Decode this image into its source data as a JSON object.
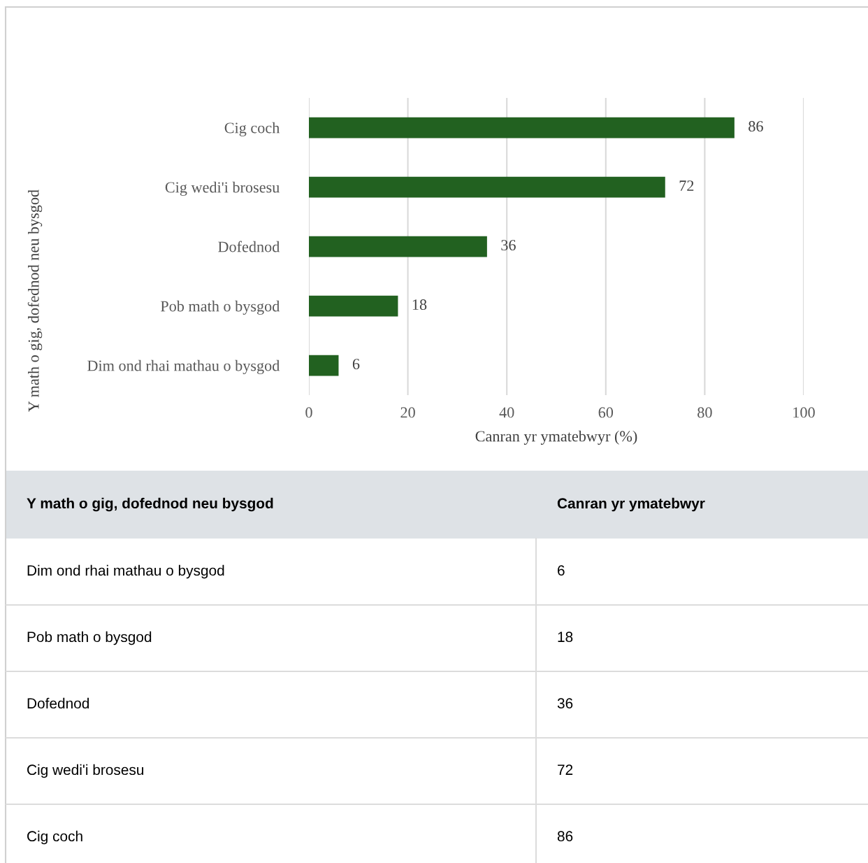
{
  "chart_data": {
    "type": "bar",
    "orientation": "horizontal",
    "categories": [
      "Cig coch",
      "Cig wedi'i brosesu",
      "Dofednod",
      "Pob math o bysgod",
      "Dim ond rhai mathau o bysgod"
    ],
    "values": [
      86,
      72,
      36,
      18,
      6
    ],
    "color": "#226120",
    "xlabel": "Canran yr ymatebwyr (%)",
    "ylabel": "Y math o gig, dofednod neu bysgod",
    "xlim": [
      0,
      100
    ],
    "xticks": [
      0,
      20,
      40,
      60,
      80,
      100
    ],
    "grid": "x",
    "data_labels": true,
    "annotations": [
      "Y math o gig, dofednod neu bysgod",
      "Canran yr ymatebwyr",
      "6",
      "18",
      "36",
      "72",
      "86"
    ]
  }
}
